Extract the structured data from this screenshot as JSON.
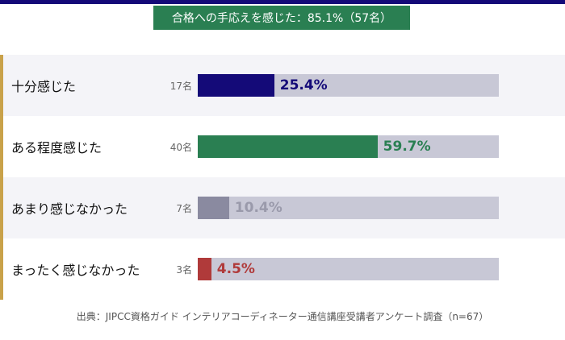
{
  "badge": "合格への手応えを感じた：85.1%（57名）",
  "source": "出典：JIPCC資格ガイド インテリアコーディネーター通信講座受講者アンケート調査（n=67）",
  "chart_data": {
    "type": "bar",
    "orientation": "horizontal",
    "categories": [
      "十分感じた",
      "ある程度感じた",
      "あまり感じなかった",
      "まったく感じなかった"
    ],
    "counts": [
      "17名",
      "40名",
      "7名",
      "3名"
    ],
    "values": [
      25.4,
      59.7,
      10.4,
      4.5
    ],
    "labels": [
      "25.4%",
      "59.7%",
      "10.4%",
      "4.5%"
    ],
    "colors": [
      "#140a78",
      "#2a7f52",
      "#8a8aa0",
      "#b03a3a"
    ],
    "label_colors": [
      "#140a78",
      "#2a7f52",
      "#9a9aab",
      "#b03a3a"
    ],
    "xlim": [
      0,
      100
    ]
  }
}
